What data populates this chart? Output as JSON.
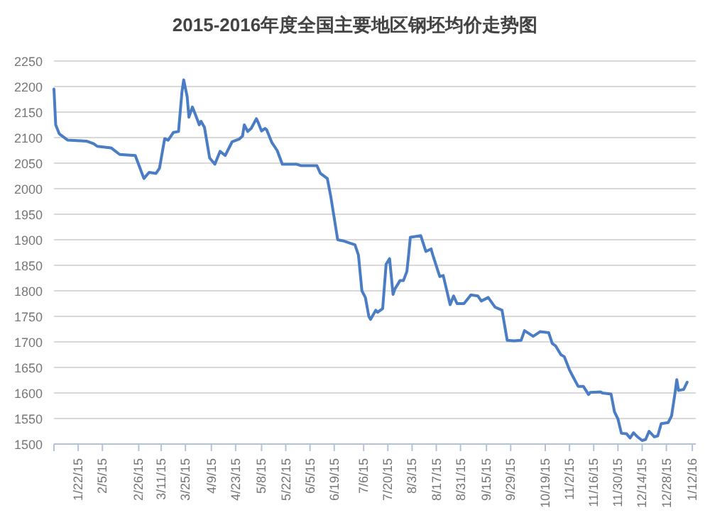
{
  "chart_data": {
    "type": "line",
    "title": "2015-2016年度全国主要地区钢坯均价走势图",
    "x": [
      "2015-01-08",
      "2015-01-09",
      "2015-01-11",
      "2015-01-12",
      "2015-01-16",
      "2015-01-27",
      "2015-01-31",
      "2015-02-02",
      "2015-02-10",
      "2015-02-15",
      "2015-02-24",
      "2015-03-01",
      "2015-03-04",
      "2015-03-08",
      "2015-03-10",
      "2015-03-13",
      "2015-03-15",
      "2015-03-18",
      "2015-03-21",
      "2015-03-23",
      "2015-03-24",
      "2015-03-26",
      "2015-03-27",
      "2015-03-29",
      "2015-03-31",
      "2015-04-02",
      "2015-04-03",
      "2015-04-05",
      "2015-04-08",
      "2015-04-11",
      "2015-04-14",
      "2015-04-17",
      "2015-04-21",
      "2015-04-25",
      "2015-04-27",
      "2015-04-28",
      "2015-04-30",
      "2015-05-02",
      "2015-05-05",
      "2015-05-06",
      "2015-05-08",
      "2015-05-10",
      "2015-05-11",
      "2015-05-14",
      "2015-05-17",
      "2015-05-20",
      "2015-05-28",
      "2015-05-31",
      "2015-06-09",
      "2015-06-11",
      "2015-06-15",
      "2015-06-17",
      "2015-06-21",
      "2015-06-24",
      "2015-07-01",
      "2015-07-03",
      "2015-07-05",
      "2015-07-07",
      "2015-07-09",
      "2015-07-10",
      "2015-07-13",
      "2015-07-14",
      "2015-07-17",
      "2015-07-19",
      "2015-07-21",
      "2015-07-23",
      "2015-07-24",
      "2015-07-27",
      "2015-07-29",
      "2015-07-31",
      "2015-08-01",
      "2015-08-02",
      "2015-08-08",
      "2015-08-11",
      "2015-08-14",
      "2015-08-15",
      "2015-08-19",
      "2015-08-21",
      "2015-08-25",
      "2015-08-27",
      "2015-08-29",
      "2015-09-02",
      "2015-09-06",
      "2015-09-10",
      "2015-09-12",
      "2015-09-16",
      "2015-09-20",
      "2015-09-24",
      "2015-09-27",
      "2015-10-01",
      "2015-10-05",
      "2015-10-07",
      "2015-10-12",
      "2015-10-16",
      "2015-10-21",
      "2015-10-23",
      "2015-10-25",
      "2015-10-28",
      "2015-10-30",
      "2015-11-02",
      "2015-11-04",
      "2015-11-07",
      "2015-11-10",
      "2015-11-13",
      "2015-11-14",
      "2015-11-20",
      "2015-11-21",
      "2015-11-26",
      "2015-11-28",
      "2015-11-30",
      "2015-12-02",
      "2015-12-05",
      "2015-12-07",
      "2015-12-09",
      "2015-12-11",
      "2015-12-14",
      "2015-12-16",
      "2015-12-18",
      "2015-12-21",
      "2015-12-23",
      "2015-12-25",
      "2015-12-29",
      "2015-12-31",
      "2016-01-02",
      "2016-01-03",
      "2016-01-04",
      "2016-01-07",
      "2016-01-09"
    ],
    "series": [
      {
        "color": "#4a7dc4",
        "values": [
          2195,
          2125,
          2108,
          2105,
          2095,
          2093,
          2088,
          2083,
          2080,
          2067,
          2065,
          2020,
          2032,
          2030,
          2040,
          2098,
          2095,
          2110,
          2112,
          2190,
          2213,
          2180,
          2140,
          2160,
          2143,
          2125,
          2132,
          2120,
          2060,
          2048,
          2073,
          2065,
          2092,
          2097,
          2103,
          2125,
          2112,
          2118,
          2137,
          2130,
          2113,
          2118,
          2115,
          2090,
          2075,
          2048,
          2048,
          2045,
          2045,
          2030,
          2020,
          1985,
          1900,
          1898,
          1890,
          1870,
          1800,
          1787,
          1750,
          1744,
          1762,
          1758,
          1765,
          1852,
          1863,
          1793,
          1803,
          1820,
          1820,
          1838,
          1870,
          1905,
          1908,
          1877,
          1882,
          1870,
          1828,
          1830,
          1773,
          1790,
          1775,
          1775,
          1792,
          1790,
          1780,
          1787,
          1768,
          1762,
          1703,
          1702,
          1703,
          1722,
          1711,
          1720,
          1718,
          1697,
          1692,
          1675,
          1671,
          1645,
          1632,
          1613,
          1613,
          1597,
          1601,
          1602,
          1600,
          1598,
          1563,
          1549,
          1521,
          1520,
          1512,
          1522,
          1515,
          1507,
          1509,
          1525,
          1514,
          1516,
          1540,
          1542,
          1555,
          1600,
          1626,
          1605,
          1607,
          1621
        ]
      }
    ],
    "xlim": [
      "2015-01-08",
      "2016-01-14"
    ],
    "xticks": [
      {
        "value": "2015-01-22",
        "label": "1/22/15"
      },
      {
        "value": "2015-02-05",
        "label": "2/5/15"
      },
      {
        "value": "2015-02-26",
        "label": "2/26/15"
      },
      {
        "value": "2015-03-11",
        "label": "3/11/15"
      },
      {
        "value": "2015-03-25",
        "label": "3/25/15"
      },
      {
        "value": "2015-04-09",
        "label": "4/9/15"
      },
      {
        "value": "2015-04-23",
        "label": "4/23/15"
      },
      {
        "value": "2015-05-08",
        "label": "5/8/15"
      },
      {
        "value": "2015-05-22",
        "label": "5/22/15"
      },
      {
        "value": "2015-06-05",
        "label": "6/5/15"
      },
      {
        "value": "2015-06-19",
        "label": "6/19/15"
      },
      {
        "value": "2015-07-06",
        "label": "7/6/15"
      },
      {
        "value": "2015-07-20",
        "label": "7/20/15"
      },
      {
        "value": "2015-08-03",
        "label": "8/3/15"
      },
      {
        "value": "2015-08-17",
        "label": "8/17/15"
      },
      {
        "value": "2015-08-31",
        "label": "8/31/15"
      },
      {
        "value": "2015-09-15",
        "label": "9/15/15"
      },
      {
        "value": "2015-09-29",
        "label": "9/29/15"
      },
      {
        "value": "2015-10-19",
        "label": "10/19/15"
      },
      {
        "value": "2015-11-02",
        "label": "11/2/15"
      },
      {
        "value": "2015-11-16",
        "label": "11/16/15"
      },
      {
        "value": "2015-11-30",
        "label": "11/30/15"
      },
      {
        "value": "2015-12-14",
        "label": "12/14/15"
      },
      {
        "value": "2015-12-28",
        "label": "12/28/15"
      },
      {
        "value": "2016-01-12",
        "label": "1/12/16"
      }
    ],
    "ylim": [
      1500,
      2250
    ],
    "yticks": [
      1500,
      1550,
      1600,
      1650,
      1700,
      1750,
      1800,
      1850,
      1900,
      1950,
      2000,
      2050,
      2100,
      2150,
      2200,
      2250
    ],
    "grid": "y"
  }
}
